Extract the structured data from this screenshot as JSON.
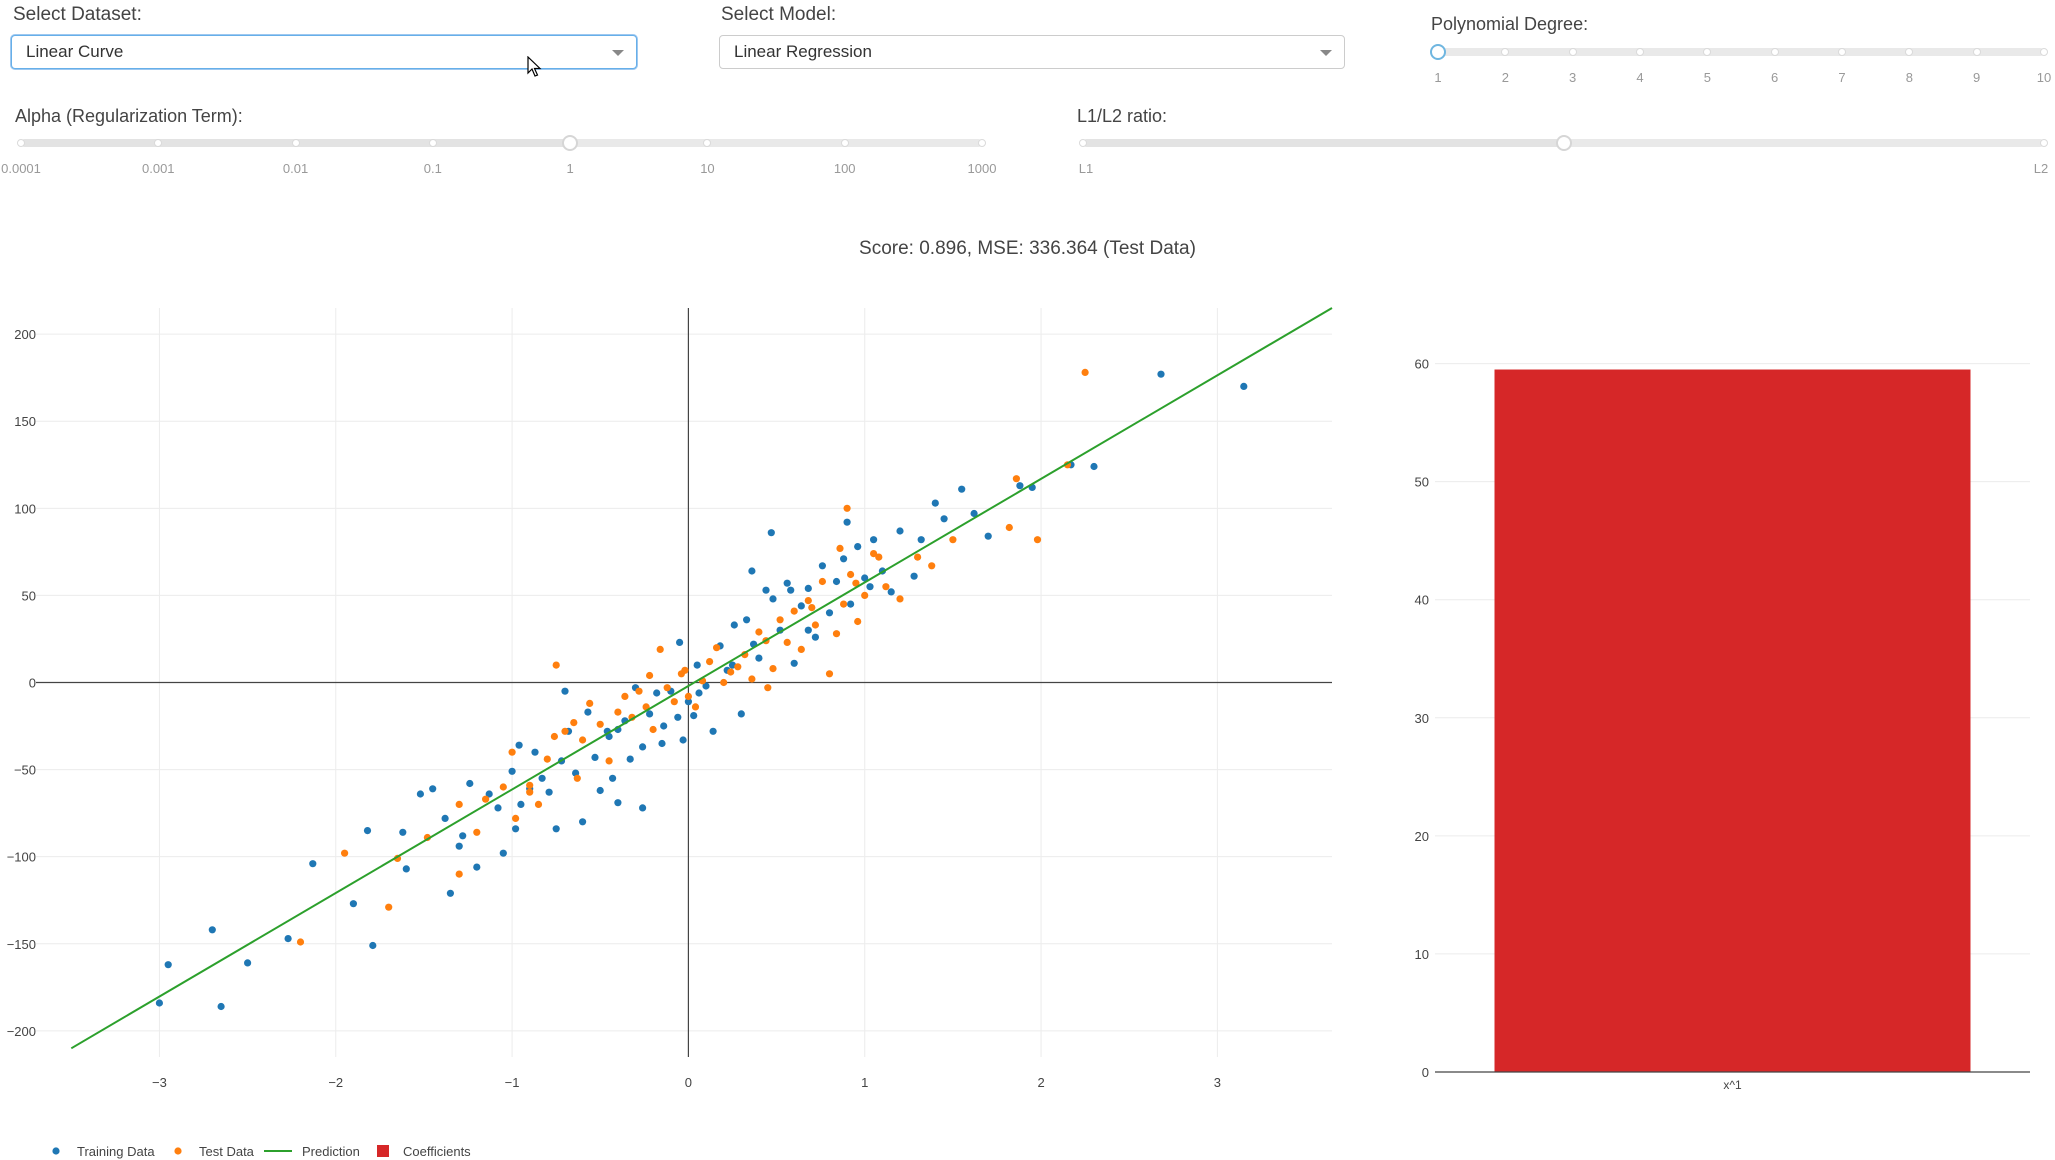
{
  "controls": {
    "dataset": {
      "label": "Select Dataset:",
      "value": "Linear Curve"
    },
    "model": {
      "label": "Select Model:",
      "value": "Linear Regression"
    },
    "degree": {
      "label": "Polynomial Degree:",
      "marks": [
        "1",
        "2",
        "3",
        "4",
        "5",
        "6",
        "7",
        "8",
        "9",
        "10"
      ],
      "value": "1"
    },
    "alpha": {
      "label": "Alpha (Regularization Term):",
      "marks": [
        "0.0001",
        "0.001",
        "0.01",
        "0.1",
        "1",
        "10",
        "100",
        "1000"
      ],
      "value": "1"
    },
    "ratio": {
      "label": "L1/L2 ratio:",
      "min_label": "L1",
      "max_label": "L2",
      "value": 0.5
    }
  },
  "score_text": "Score: 0.896, MSE: 336.364 (Test Data)",
  "colors": {
    "training": "#1f77b4",
    "test": "#ff7f0e",
    "prediction": "#2ca02c",
    "coefficients": "#d62728"
  },
  "legend": [
    "Training Data",
    "Test Data",
    "Prediction",
    "Coefficients"
  ],
  "chart_data": [
    {
      "type": "scatter",
      "title": "",
      "xlabel": "",
      "ylabel": "",
      "xlim": [
        -3.7,
        3.65
      ],
      "ylim": [
        -215,
        215
      ],
      "x_ticks": [
        -3,
        -2,
        -1,
        0,
        1,
        2,
        3
      ],
      "y_ticks": [
        -200,
        -150,
        -100,
        -50,
        0,
        50,
        100,
        150,
        200
      ],
      "grid": true,
      "series": [
        {
          "name": "Training Data",
          "mode": "markers",
          "points": [
            [
              -3.0,
              -184
            ],
            [
              -2.95,
              -162
            ],
            [
              -2.7,
              -142
            ],
            [
              -2.65,
              -186
            ],
            [
              -2.5,
              -161
            ],
            [
              -2.27,
              -147
            ],
            [
              -2.13,
              -104
            ],
            [
              -1.9,
              -127
            ],
            [
              -1.82,
              -85
            ],
            [
              -1.79,
              -151
            ],
            [
              -1.62,
              -86
            ],
            [
              -1.6,
              -107
            ],
            [
              -1.52,
              -64
            ],
            [
              -1.45,
              -61
            ],
            [
              -1.38,
              -78
            ],
            [
              -1.35,
              -121
            ],
            [
              -1.3,
              -94
            ],
            [
              -1.28,
              -88
            ],
            [
              -1.24,
              -58
            ],
            [
              -1.2,
              -106
            ],
            [
              -1.13,
              -64
            ],
            [
              -1.08,
              -72
            ],
            [
              -1.05,
              -98
            ],
            [
              -1.0,
              -51
            ],
            [
              -0.98,
              -84
            ],
            [
              -0.95,
              -70
            ],
            [
              -0.9,
              -61
            ],
            [
              -0.87,
              -40
            ],
            [
              -0.83,
              -55
            ],
            [
              -0.79,
              -63
            ],
            [
              -0.75,
              -84
            ],
            [
              -0.72,
              -45
            ],
            [
              -0.68,
              -28
            ],
            [
              -0.64,
              -52
            ],
            [
              -0.6,
              -80
            ],
            [
              -0.57,
              -17
            ],
            [
              -0.53,
              -43
            ],
            [
              -0.5,
              -62
            ],
            [
              -0.46,
              -28
            ],
            [
              -0.43,
              -55
            ],
            [
              -0.4,
              -69
            ],
            [
              -0.36,
              -22
            ],
            [
              -0.33,
              -44
            ],
            [
              -0.3,
              -3
            ],
            [
              -0.26,
              -37
            ],
            [
              -0.22,
              -18
            ],
            [
              -0.18,
              -6
            ],
            [
              -0.14,
              -25
            ],
            [
              -0.1,
              -5
            ],
            [
              -0.06,
              -20
            ],
            [
              -0.03,
              -33
            ],
            [
              0.0,
              -11
            ],
            [
              0.03,
              -19
            ],
            [
              0.06,
              -6
            ],
            [
              0.1,
              -2
            ],
            [
              0.14,
              -28
            ],
            [
              0.18,
              21
            ],
            [
              0.22,
              7
            ],
            [
              0.26,
              33
            ],
            [
              0.3,
              -18
            ],
            [
              0.33,
              36
            ],
            [
              0.37,
              22
            ],
            [
              0.4,
              14
            ],
            [
              0.44,
              53
            ],
            [
              0.48,
              48
            ],
            [
              0.52,
              30
            ],
            [
              0.56,
              57
            ],
            [
              0.6,
              11
            ],
            [
              0.64,
              44
            ],
            [
              0.68,
              54
            ],
            [
              0.72,
              26
            ],
            [
              0.76,
              67
            ],
            [
              0.8,
              40
            ],
            [
              0.84,
              58
            ],
            [
              0.88,
              71
            ],
            [
              0.92,
              45
            ],
            [
              0.96,
              78
            ],
            [
              1.0,
              60
            ],
            [
              1.05,
              82
            ],
            [
              1.1,
              64
            ],
            [
              1.15,
              52
            ],
            [
              1.2,
              87
            ],
            [
              1.28,
              61
            ],
            [
              1.32,
              82
            ],
            [
              1.4,
              103
            ],
            [
              1.45,
              94
            ],
            [
              1.55,
              111
            ],
            [
              1.62,
              97
            ],
            [
              1.7,
              84
            ],
            [
              1.88,
              113
            ],
            [
              1.95,
              112
            ],
            [
              2.17,
              125
            ],
            [
              2.3,
              124
            ],
            [
              2.68,
              177
            ],
            [
              3.15,
              170
            ],
            [
              0.47,
              86
            ],
            [
              0.36,
              64
            ],
            [
              -0.05,
              23
            ],
            [
              0.05,
              10
            ],
            [
              0.9,
              92
            ],
            [
              -0.4,
              -27
            ],
            [
              -0.26,
              -72
            ],
            [
              -0.7,
              -5
            ],
            [
              -0.96,
              -36
            ],
            [
              0.58,
              53
            ],
            [
              -0.45,
              -31
            ],
            [
              0.68,
              30
            ],
            [
              1.03,
              55
            ],
            [
              0.25,
              10
            ],
            [
              -0.15,
              -35
            ]
          ]
        },
        {
          "name": "Test Data",
          "mode": "markers",
          "points": [
            [
              -2.2,
              -149
            ],
            [
              -1.95,
              -98
            ],
            [
              -1.7,
              -129
            ],
            [
              -1.65,
              -101
            ],
            [
              -1.48,
              -89
            ],
            [
              -1.3,
              -110
            ],
            [
              -1.2,
              -86
            ],
            [
              -1.15,
              -67
            ],
            [
              -1.05,
              -60
            ],
            [
              -1.0,
              -40
            ],
            [
              -0.98,
              -78
            ],
            [
              -0.9,
              -59
            ],
            [
              -0.85,
              -70
            ],
            [
              -0.8,
              -44
            ],
            [
              -0.76,
              -31
            ],
            [
              -0.75,
              10
            ],
            [
              -0.7,
              -28
            ],
            [
              -0.63,
              -55
            ],
            [
              -0.6,
              -33
            ],
            [
              -0.56,
              -12
            ],
            [
              -0.5,
              -24
            ],
            [
              -0.45,
              -45
            ],
            [
              -0.4,
              -17
            ],
            [
              -0.36,
              -8
            ],
            [
              -0.32,
              -20
            ],
            [
              -0.28,
              -5
            ],
            [
              -0.24,
              -14
            ],
            [
              -0.2,
              -27
            ],
            [
              -0.16,
              19
            ],
            [
              -0.12,
              -3
            ],
            [
              -0.08,
              -11
            ],
            [
              -0.04,
              5
            ],
            [
              0.0,
              -8
            ],
            [
              0.04,
              -14
            ],
            [
              0.08,
              1
            ],
            [
              0.12,
              12
            ],
            [
              0.16,
              20
            ],
            [
              0.2,
              0
            ],
            [
              0.24,
              6
            ],
            [
              0.28,
              9
            ],
            [
              0.32,
              16
            ],
            [
              0.36,
              2
            ],
            [
              0.4,
              29
            ],
            [
              0.44,
              24
            ],
            [
              0.48,
              8
            ],
            [
              0.52,
              36
            ],
            [
              0.56,
              23
            ],
            [
              0.6,
              41
            ],
            [
              0.64,
              19
            ],
            [
              0.68,
              47
            ],
            [
              0.72,
              33
            ],
            [
              0.76,
              58
            ],
            [
              0.8,
              5
            ],
            [
              0.84,
              28
            ],
            [
              0.88,
              45
            ],
            [
              0.92,
              62
            ],
            [
              0.96,
              35
            ],
            [
              1.0,
              50
            ],
            [
              1.05,
              74
            ],
            [
              1.12,
              55
            ],
            [
              1.2,
              48
            ],
            [
              1.3,
              72
            ],
            [
              1.38,
              67
            ],
            [
              1.5,
              82
            ],
            [
              1.82,
              89
            ],
            [
              1.86,
              117
            ],
            [
              1.98,
              82
            ],
            [
              2.15,
              125
            ],
            [
              2.25,
              178
            ],
            [
              0.9,
              100
            ],
            [
              -0.22,
              4
            ],
            [
              -0.65,
              -23
            ],
            [
              -0.9,
              -63
            ],
            [
              0.45,
              -3
            ],
            [
              0.7,
              43
            ],
            [
              1.08,
              72
            ],
            [
              -1.3,
              -70
            ],
            [
              0.95,
              57
            ],
            [
              0.86,
              77
            ],
            [
              -0.02,
              7
            ]
          ]
        },
        {
          "name": "Prediction",
          "mode": "lines",
          "points": [
            [
              -3.5,
              -210
            ],
            [
              3.65,
              215
            ]
          ]
        }
      ]
    },
    {
      "type": "bar",
      "title": "",
      "categories": [
        "x^1"
      ],
      "values": [
        59.5
      ],
      "ylim": [
        0,
        62
      ],
      "y_ticks": [
        0,
        10,
        20,
        30,
        40,
        50,
        60
      ],
      "series": [
        {
          "name": "Coefficients",
          "values": [
            59.5
          ]
        }
      ]
    }
  ]
}
